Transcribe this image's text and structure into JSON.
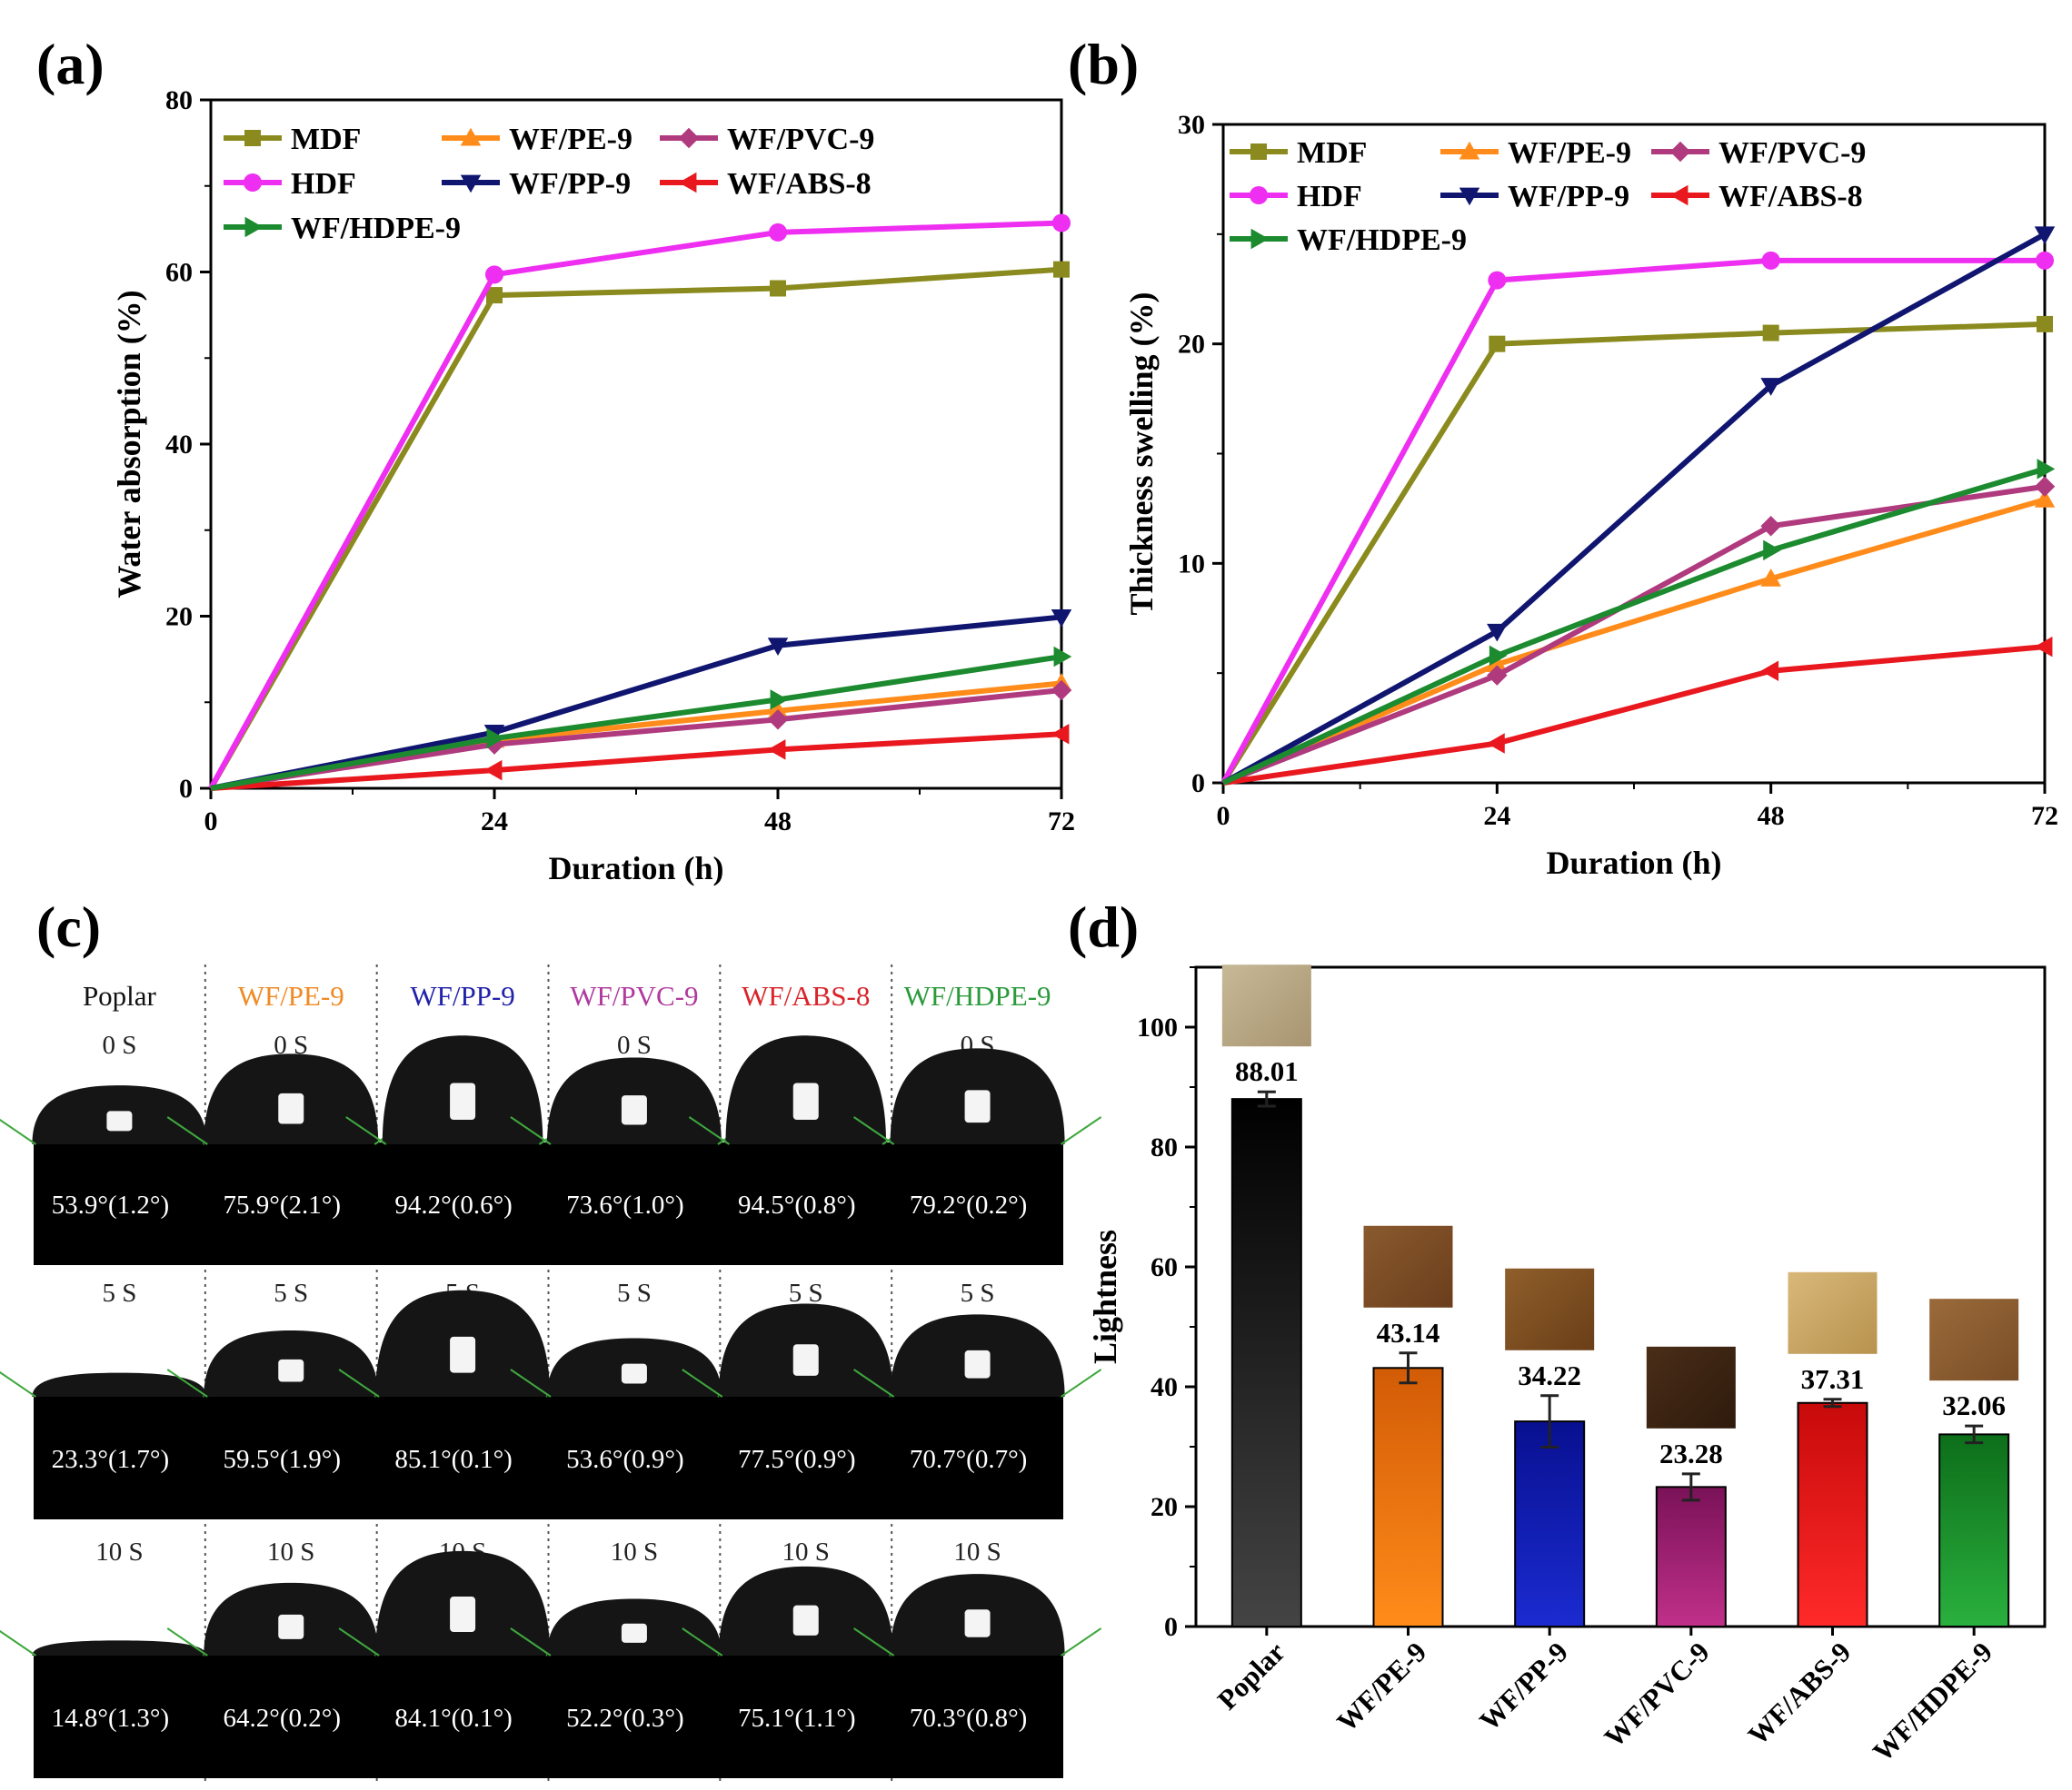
{
  "chart_data": [
    {
      "panel": "(a)",
      "type": "line",
      "xlabel": "Duration (h)",
      "ylabel": "Water absorption (%)",
      "xlim": [
        0,
        72
      ],
      "ylim": [
        0,
        80
      ],
      "xticks": [
        0,
        24,
        48,
        72
      ],
      "yticks": [
        0,
        20,
        40,
        60,
        80
      ],
      "x": [
        0,
        24,
        48,
        72
      ],
      "series": [
        {
          "name": "MDF",
          "color": "#8a8a1e",
          "marker": "square",
          "values": [
            0,
            57.3,
            58.1,
            60.3
          ]
        },
        {
          "name": "WF/PE-9",
          "color": "#ff8c1a",
          "marker": "triangle-up",
          "values": [
            0,
            5.6,
            9.0,
            12.2
          ]
        },
        {
          "name": "WF/PVC-9",
          "color": "#b03a7e",
          "marker": "diamond",
          "values": [
            0,
            5.1,
            8.0,
            11.4
          ]
        },
        {
          "name": "HDF",
          "color": "#ee2ef0",
          "marker": "circle",
          "values": [
            0,
            59.7,
            64.6,
            65.7
          ]
        },
        {
          "name": "WF/PP-9",
          "color": "#101670",
          "marker": "triangle-down",
          "values": [
            0,
            6.5,
            16.6,
            19.9
          ]
        },
        {
          "name": "WF/ABS-8",
          "color": "#e8181e",
          "marker": "triangle-left",
          "values": [
            0,
            2.1,
            4.5,
            6.3
          ]
        },
        {
          "name": "WF/HDPE-9",
          "color": "#1c8a2e",
          "marker": "triangle-right",
          "values": [
            0,
            5.8,
            10.3,
            15.3
          ]
        }
      ]
    },
    {
      "panel": "(b)",
      "type": "line",
      "xlabel": "Duration (h)",
      "ylabel": "Thickness swelling (%)",
      "xlim": [
        0,
        72
      ],
      "ylim": [
        0,
        30
      ],
      "xticks": [
        0,
        24,
        48,
        72
      ],
      "yticks": [
        0,
        10,
        20,
        30
      ],
      "x": [
        0,
        24,
        48,
        72
      ],
      "series": [
        {
          "name": "MDF",
          "color": "#8a8a1e",
          "marker": "square",
          "values": [
            0,
            20.0,
            20.5,
            20.9
          ]
        },
        {
          "name": "WF/PE-9",
          "color": "#ff8c1a",
          "marker": "triangle-up",
          "values": [
            0,
            5.4,
            9.3,
            12.9
          ]
        },
        {
          "name": "WF/PVC-9",
          "color": "#b03a7e",
          "marker": "diamond",
          "values": [
            0,
            4.9,
            11.7,
            13.5
          ]
        },
        {
          "name": "HDF",
          "color": "#ee2ef0",
          "marker": "circle",
          "values": [
            0,
            22.9,
            23.8,
            23.8
          ]
        },
        {
          "name": "WF/PP-9",
          "color": "#101670",
          "marker": "triangle-down",
          "values": [
            0,
            6.9,
            18.1,
            25.0
          ]
        },
        {
          "name": "WF/ABS-8",
          "color": "#e8181e",
          "marker": "triangle-left",
          "values": [
            0,
            1.8,
            5.1,
            6.2
          ]
        },
        {
          "name": "WF/HDPE-9",
          "color": "#1c8a2e",
          "marker": "triangle-right",
          "values": [
            0,
            5.8,
            10.6,
            14.3
          ]
        }
      ]
    },
    {
      "panel": "(d)",
      "type": "bar",
      "ylabel": "Lightness",
      "ylim": [
        0,
        110
      ],
      "yticks": [
        0,
        20,
        40,
        60,
        80,
        100
      ],
      "categories": [
        "Poplar",
        "WF/PE-9",
        "WF/PP-9",
        "WF/PVC-9",
        "WF/ABS-9",
        "WF/HDPE-9"
      ],
      "values": [
        88.01,
        43.14,
        34.22,
        23.28,
        37.31,
        32.06
      ],
      "value_labels": [
        "88.01",
        "43.14",
        "34.22",
        "23.28",
        "37.31",
        "32.06"
      ],
      "errors": [
        1.2,
        2.5,
        4.3,
        2.2,
        0.6,
        1.4
      ],
      "bar_colors": [
        [
          "#000000",
          "#444444"
        ],
        [
          "#d25b06",
          "#ff8c1a"
        ],
        [
          "#081090",
          "#1b2bd0"
        ],
        [
          "#7a1258",
          "#c0308a"
        ],
        [
          "#c80a0a",
          "#ff2a2a"
        ],
        [
          "#0d6e1a",
          "#2ab03e"
        ]
      ],
      "swatch_colors": [
        [
          "#c7b997",
          "#a89470"
        ],
        [
          "#8a5a2e",
          "#6b3e1c"
        ],
        [
          "#8f5f2a",
          "#6a3e18"
        ],
        [
          "#4a2e18",
          "#2e1a0c"
        ],
        [
          "#d8b87a",
          "#b8924e"
        ],
        [
          "#9a6a3a",
          "#7a4e26"
        ]
      ]
    }
  ],
  "panels": {
    "a": "(a)",
    "b": "(b)",
    "c": "(c)",
    "d": "(d)"
  },
  "contact_angle": {
    "samples": [
      {
        "name": "Poplar",
        "color": "#111111"
      },
      {
        "name": "WF/PE-9",
        "color": "#f08a24"
      },
      {
        "name": "WF/PP-9",
        "color": "#2222aa"
      },
      {
        "name": "WF/PVC-9",
        "color": "#b03a9e"
      },
      {
        "name": "WF/ABS-8",
        "color": "#d8242a"
      },
      {
        "name": "WF/HDPE-9",
        "color": "#2a9a3a"
      }
    ],
    "times": [
      {
        "label": "0 S",
        "angles": [
          "53.9°(1.2°)",
          "75.9°(2.1°)",
          "94.2°(0.6°)",
          "73.6°(1.0°)",
          "94.5°(0.8°)",
          "79.2°(0.2°)"
        ]
      },
      {
        "label": "5 S",
        "angles": [
          "23.3°(1.7°)",
          "59.5°(1.9°)",
          "85.1°(0.1°)",
          "53.6°(0.9°)",
          "77.5°(0.9°)",
          "70.7°(0.7°)"
        ]
      },
      {
        "label": "10 S",
        "angles": [
          "14.8°(1.3°)",
          "64.2°(0.2°)",
          "84.1°(0.1°)",
          "52.2°(0.3°)",
          "75.1°(1.1°)",
          "70.3°(0.8°)"
        ]
      }
    ],
    "angle_values": [
      [
        53.9,
        75.9,
        94.2,
        73.6,
        94.5,
        79.2
      ],
      [
        23.3,
        59.5,
        85.1,
        53.6,
        77.5,
        70.7
      ],
      [
        14.8,
        64.2,
        84.1,
        52.2,
        75.1,
        70.3
      ]
    ]
  }
}
